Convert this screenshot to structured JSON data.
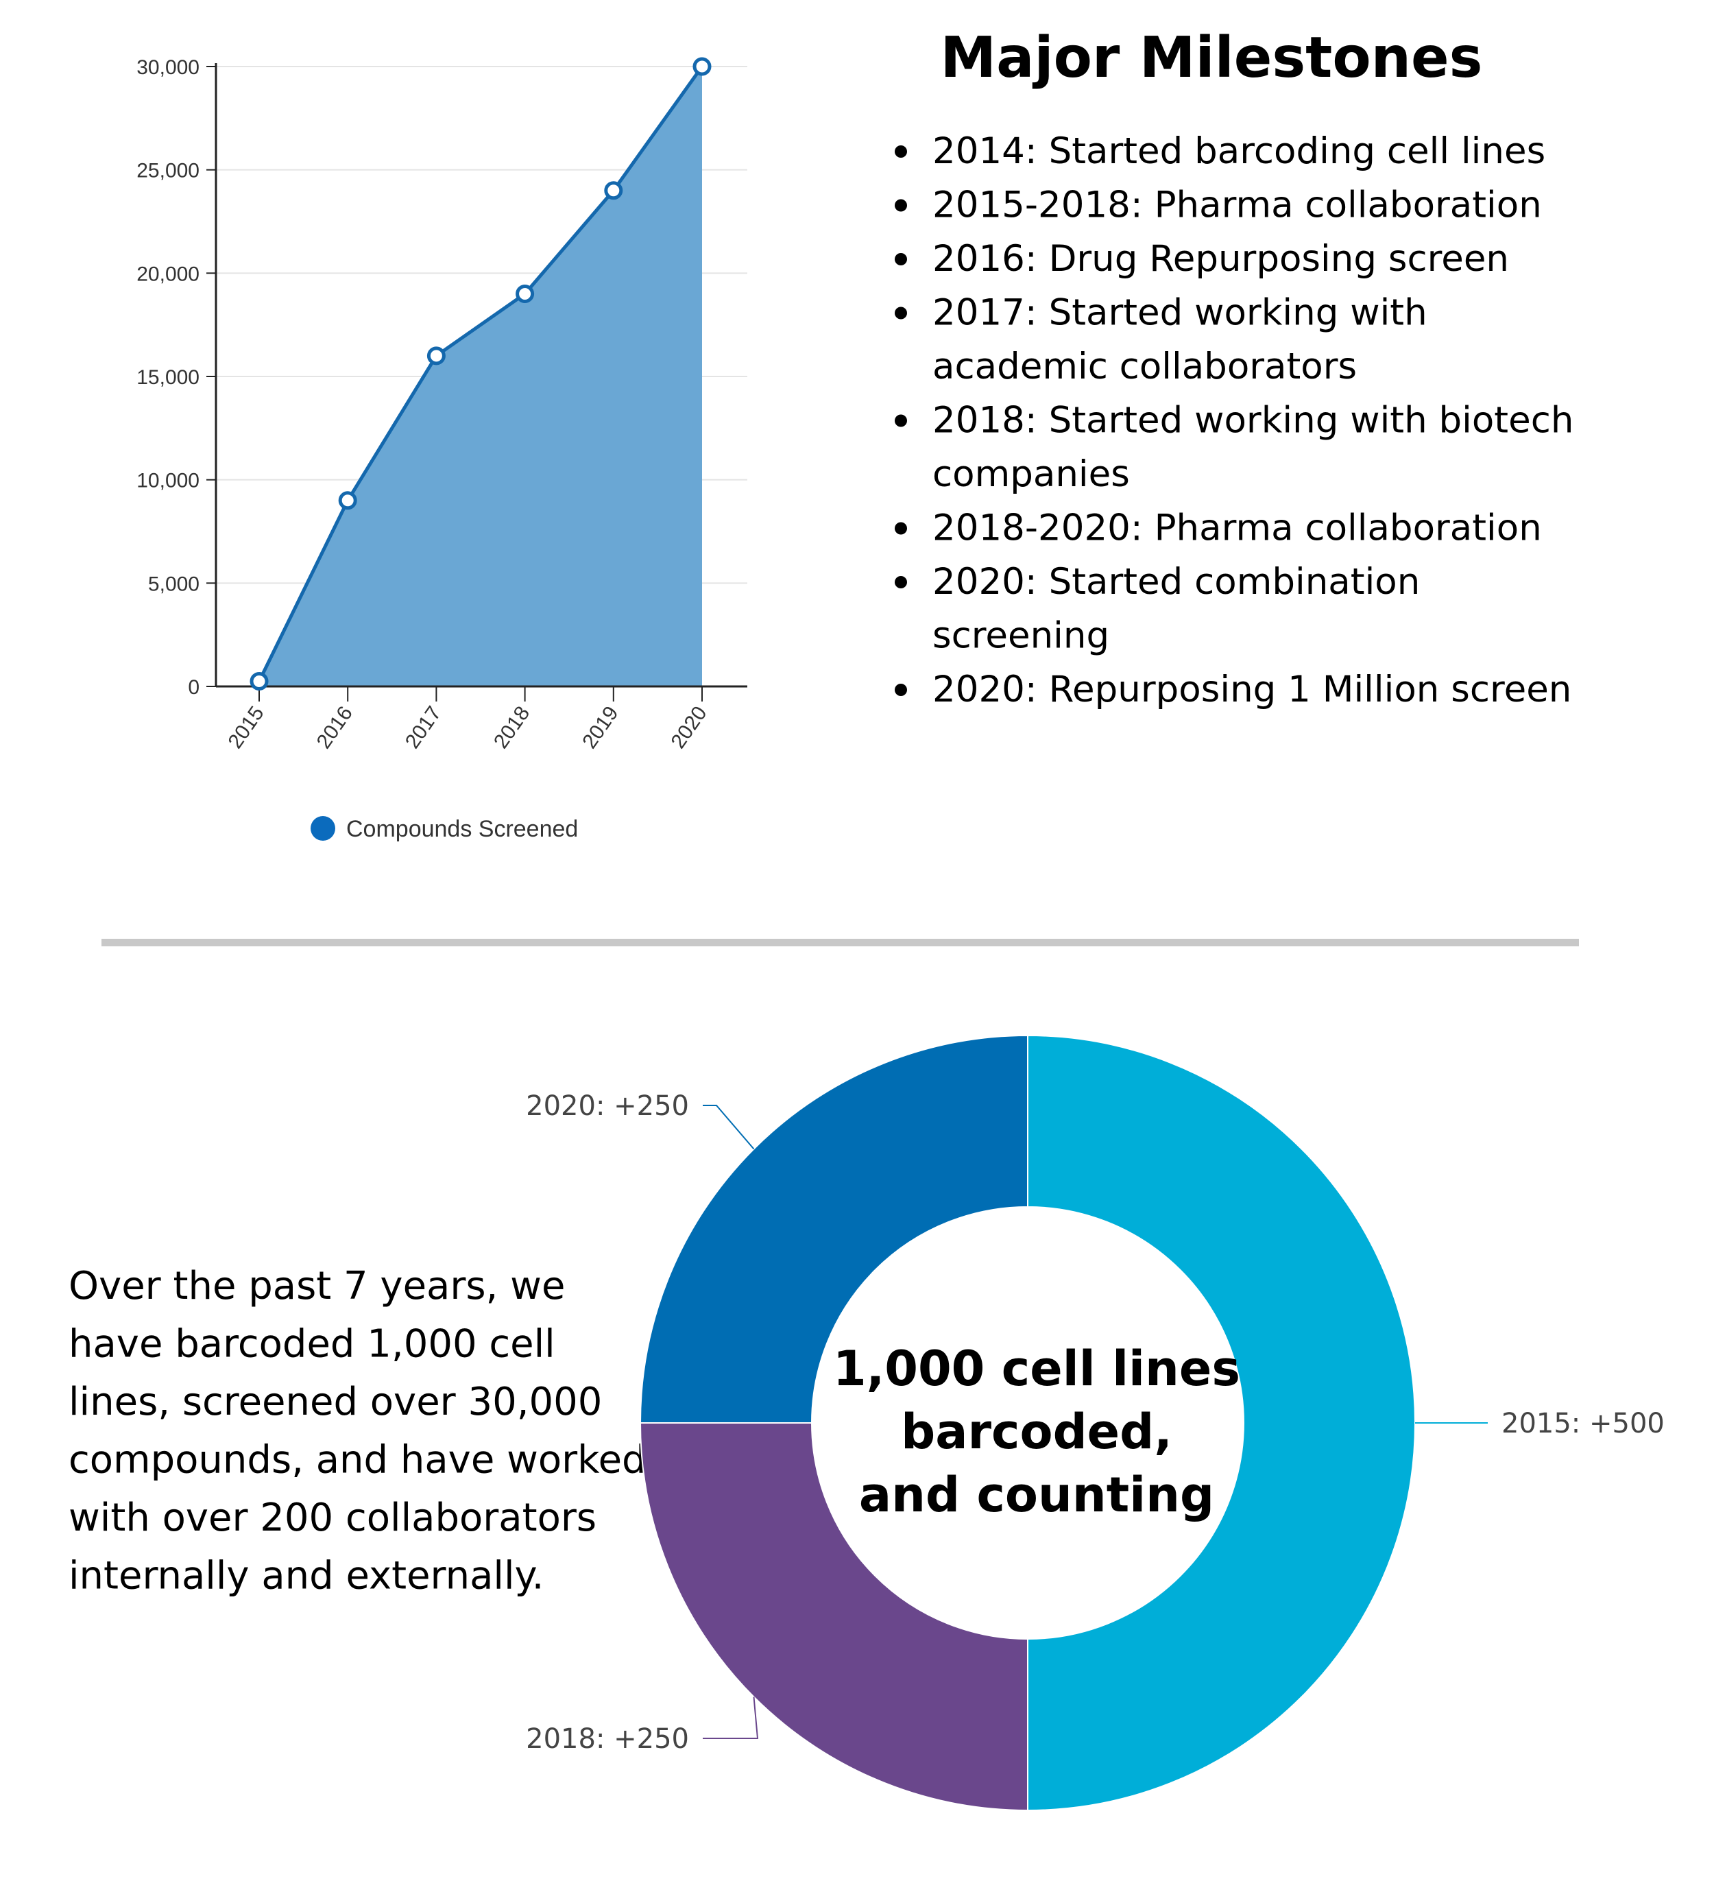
{
  "chart_data": [
    {
      "type": "area",
      "title": "",
      "xlabel": "",
      "ylabel": "",
      "x": [
        "2015",
        "2016",
        "2017",
        "2018",
        "2019",
        "2020"
      ],
      "series": [
        {
          "name": "Compounds Screened",
          "values": [
            250,
            9000,
            16000,
            19000,
            24000,
            30000
          ]
        }
      ],
      "ylim": [
        0,
        30000
      ],
      "yticks": [
        0,
        5000,
        10000,
        15000,
        20000,
        25000,
        30000
      ],
      "ytick_labels": [
        "0",
        "5,000",
        "10,000",
        "15,000",
        "20,000",
        "25,000",
        "30,000"
      ],
      "grid": true,
      "legend": "bottom",
      "fill_color": "#6aa7d4",
      "line_color": "#1468ad",
      "legend_color": "#0b6bbd"
    },
    {
      "type": "pie",
      "title": "",
      "slices": [
        {
          "label": "2015: +500",
          "value": 500,
          "color": "#00aed8"
        },
        {
          "label": "2018: +250",
          "value": 250,
          "color": "#6a478c"
        },
        {
          "label": "2020: +250",
          "value": 250,
          "color": "#006db3"
        }
      ],
      "center_lines": [
        "1,000 cell lines",
        "barcoded,",
        "and counting"
      ]
    }
  ],
  "milestones": {
    "title": "Major Milestones",
    "items": [
      {
        "lines": [
          "2014: Started barcoding cell lines"
        ]
      },
      {
        "lines": [
          "2015-2018: Pharma collaboration"
        ]
      },
      {
        "lines": [
          "2016: Drug Repurposing screen"
        ]
      },
      {
        "lines": [
          "2017: Started working with",
          "academic collaborators"
        ]
      },
      {
        "lines": [
          "2018: Started working with biotech",
          "companies"
        ]
      },
      {
        "lines": [
          "2018-2020: Pharma collaboration"
        ]
      },
      {
        "lines": [
          "2020: Started combination",
          "screening"
        ]
      },
      {
        "lines": [
          "2020: Repurposing 1 Million screen"
        ]
      }
    ]
  },
  "summary": {
    "lines": [
      "Over the past 7 years, we",
      "have barcoded 1,000 cell",
      "lines, screened over 30,000",
      "compounds, and have worked",
      "with over 200 collaborators",
      "internally and externally."
    ]
  },
  "colors": {
    "divider": "#c8c8c8",
    "grid": "#e4e4e4",
    "axis": "#222222"
  }
}
